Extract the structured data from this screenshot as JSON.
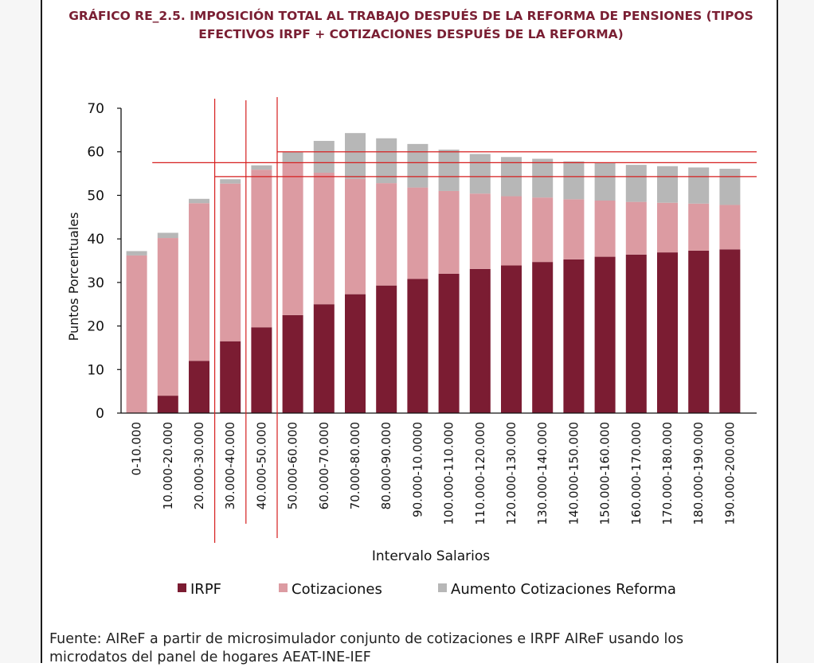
{
  "title": {
    "line1": "GRÁFICO RE_2.5.  IMPOSICIÓN TOTAL AL TRABAJO DESPUÉS DE LA REFORMA DE PENSIONES (TIPOS",
    "line2": "EFECTIVOS IRPF + COTIZACIONES DESPUÉS DE LA REFORMA)"
  },
  "source": {
    "line1": "Fuente: AIReF a partir de microsimulador conjunto de cotizaciones e IRPF AIReF usando los",
    "line2": "microdatos del panel de hogares AEAT-INE-IEF"
  },
  "colors": {
    "title": "#7a1f33",
    "irpf": "#7b1c32",
    "cotizaciones": "#dc9ba2",
    "aumento": "#b7b7b7",
    "annotation": "#d61f1f"
  },
  "chart_data": {
    "type": "bar",
    "stacked": true,
    "xlabel": "Intervalo Salarios",
    "ylabel": "Puntos Porcentuales",
    "ylim": [
      0,
      70
    ],
    "yticks": [
      0,
      10,
      20,
      30,
      40,
      50,
      60,
      70
    ],
    "grid": false,
    "legend_position": "bottom",
    "categories": [
      "0-10.000",
      "10.000-20.000",
      "20.000-30.000",
      "30.000-40.000",
      "40.000-50.000",
      "50.000-60.000",
      "60.000-70.000",
      "70.000-80.000",
      "80.000-90.000",
      "90.000-10.0000",
      "100.000-110.000",
      "110.000-120.000",
      "120.000-130.000",
      "130.000-140.000",
      "140.000-150.000",
      "150.000-160.000",
      "160.000-170.000",
      "170.000-180.000",
      "180.000-190.000",
      "190.000-200.000"
    ],
    "series": [
      {
        "name": "IRPF",
        "values": [
          0,
          4,
          12,
          16.5,
          19.7,
          22.5,
          25,
          27.3,
          29.3,
          30.8,
          32,
          33.1,
          33.9,
          34.7,
          35.3,
          35.9,
          36.4,
          36.9,
          37.3,
          37.6
        ]
      },
      {
        "name": "Cotizaciones",
        "values": [
          36.2,
          36.2,
          36.2,
          36.2,
          36.2,
          35.1,
          30.2,
          26.5,
          23.5,
          21,
          19,
          17.3,
          15.9,
          14.8,
          13.8,
          12.9,
          12.1,
          11.4,
          10.8,
          10.2
        ]
      },
      {
        "name": "Aumento Cotizaciones Reforma",
        "values": [
          1,
          1.2,
          1,
          1,
          1,
          2.3,
          7.3,
          10.5,
          10.3,
          10,
          9.5,
          9.1,
          9,
          8.9,
          8.7,
          8.6,
          8.5,
          8.4,
          8.3,
          8.3
        ]
      }
    ],
    "annotations": {
      "horizontal_lines_y": [
        60,
        57.5,
        54.3
      ],
      "vertical_lines_after_category_index": [
        2,
        3,
        4
      ]
    }
  }
}
